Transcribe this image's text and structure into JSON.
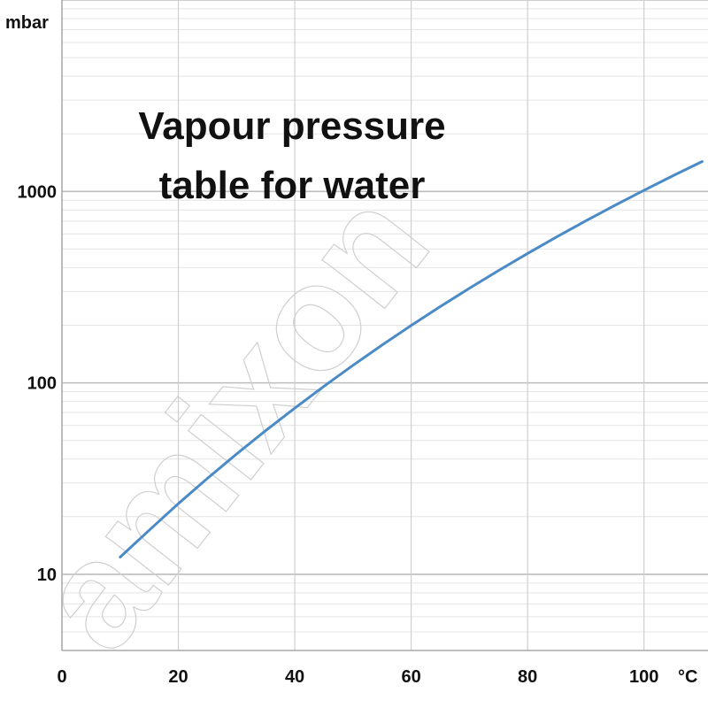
{
  "chart_data": {
    "type": "line",
    "title_lines": [
      "Vapour pressure",
      "table for water"
    ],
    "y_unit": "mbar",
    "x_unit": "°C",
    "y_scale": "log",
    "grid": true,
    "xlim": [
      0,
      111
    ],
    "ylim": [
      4,
      10000
    ],
    "x_ticks": [
      0,
      20,
      40,
      60,
      80,
      100
    ],
    "x_tick_labels": [
      "0",
      "20",
      "40",
      "60",
      "80",
      "100"
    ],
    "y_ticks": [
      10,
      100,
      1000
    ],
    "y_tick_labels": [
      "10",
      "100",
      "1000"
    ],
    "series": [
      {
        "color": "#4a8ac6",
        "x": [
          10,
          15,
          20,
          25,
          30,
          35,
          40,
          45,
          50,
          55,
          60,
          65,
          70,
          75,
          80,
          85,
          90,
          95,
          100,
          105,
          110
        ],
        "y": [
          12.3,
          17.0,
          23.4,
          31.7,
          42.5,
          56.3,
          73.8,
          95.9,
          123.5,
          157.6,
          199.4,
          250.3,
          311.8,
          385.8,
          474.1,
          578.7,
          701.8,
          845.6,
          1013,
          1209,
          1433
        ]
      }
    ]
  },
  "watermark": "amixon"
}
